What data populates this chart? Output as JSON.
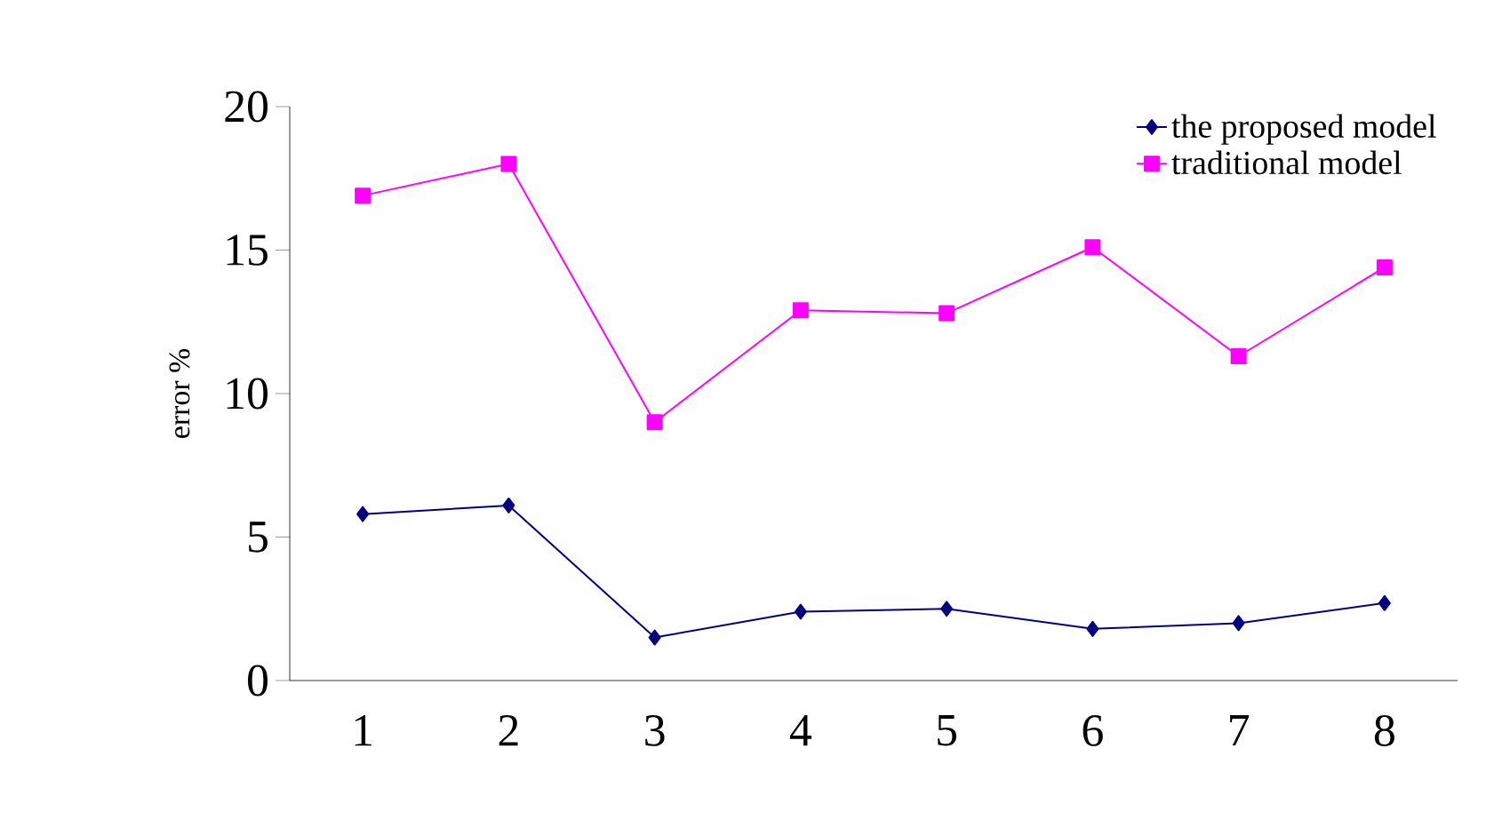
{
  "chart_data": {
    "type": "line",
    "ylabel": "error %",
    "categories": [
      "1",
      "2",
      "3",
      "4",
      "5",
      "6",
      "7",
      "8"
    ],
    "series": [
      {
        "name": "the proposed model",
        "color": "#000080",
        "marker": "diamond",
        "values": [
          5.8,
          6.1,
          1.5,
          2.4,
          2.5,
          1.8,
          2.0,
          2.7
        ]
      },
      {
        "name": "traditional model",
        "color": "#ff00ff",
        "marker": "square",
        "values": [
          16.9,
          18.0,
          9.0,
          12.9,
          12.8,
          15.1,
          11.3,
          14.4
        ]
      }
    ],
    "ylim": [
      0,
      20
    ],
    "yticks": [
      0,
      5,
      10,
      15,
      20
    ],
    "grid": false,
    "legend": "top right"
  }
}
